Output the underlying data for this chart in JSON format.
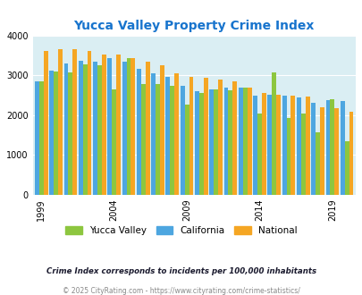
{
  "title": "Yucca Valley Property Crime Index",
  "years": [
    1999,
    2000,
    2001,
    2002,
    2003,
    2004,
    2005,
    2006,
    2007,
    2008,
    2009,
    2010,
    2011,
    2012,
    2013,
    2014,
    2015,
    2016,
    2017,
    2018,
    2019,
    2020
  ],
  "yucca_valley": [
    2840,
    3100,
    3080,
    3280,
    3250,
    2640,
    3420,
    2780,
    2780,
    2730,
    2270,
    2560,
    2650,
    2630,
    2680,
    2040,
    3060,
    1930,
    2040,
    1560,
    2390,
    1340
  ],
  "california": [
    2850,
    3110,
    3300,
    3360,
    3340,
    3440,
    3330,
    3170,
    3040,
    2960,
    2730,
    2600,
    2650,
    2700,
    2700,
    2490,
    2510,
    2490,
    2440,
    2300,
    2380,
    2350
  ],
  "national": [
    3620,
    3650,
    3650,
    3620,
    3520,
    3510,
    3430,
    3340,
    3240,
    3050,
    2950,
    2940,
    2880,
    2840,
    2700,
    2560,
    2500,
    2480,
    2460,
    2200,
    2180,
    2090
  ],
  "yucca_color": "#8dc63f",
  "california_color": "#4da6e0",
  "national_color": "#f5a623",
  "bg_color": "#daeef3",
  "ylim": [
    0,
    4000
  ],
  "yticks": [
    0,
    1000,
    2000,
    3000,
    4000
  ],
  "xlabel_ticks": [
    1999,
    2004,
    2009,
    2014,
    2019
  ],
  "footnote1": "Crime Index corresponds to incidents per 100,000 inhabitants",
  "footnote2": "© 2025 CityRating.com - https://www.cityrating.com/crime-statistics/",
  "title_color": "#1874cd",
  "footnote1_color": "#1a1a2e",
  "footnote2_color": "#888888"
}
